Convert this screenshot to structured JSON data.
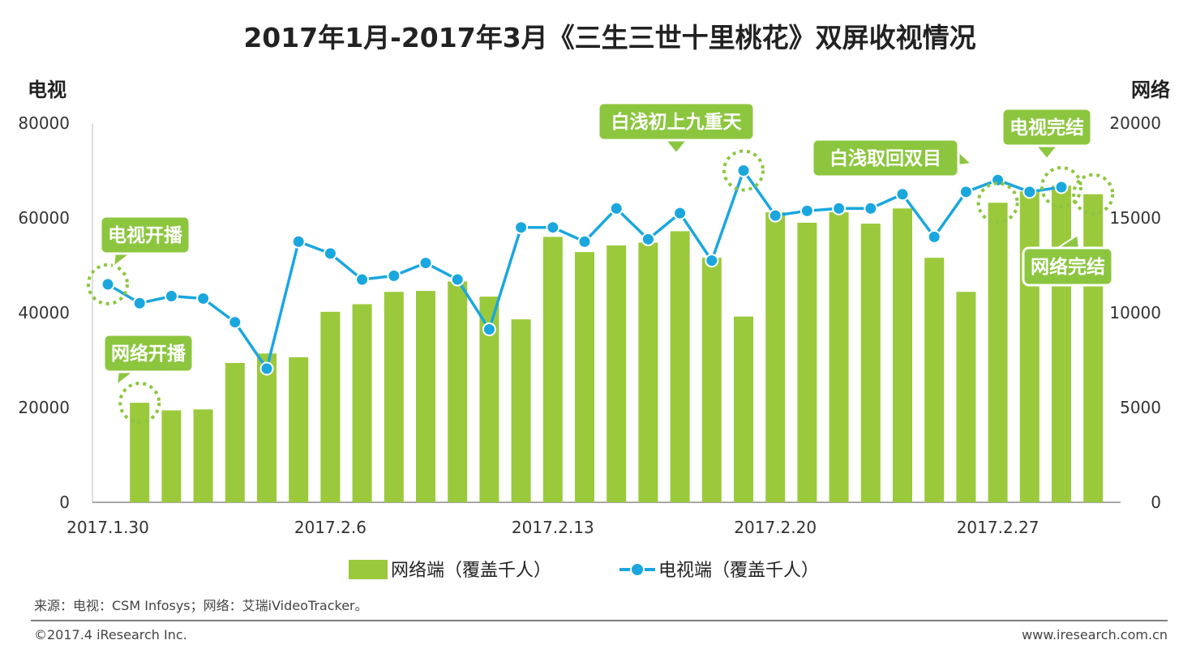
{
  "chart_data": {
    "type": "bar+line",
    "title": "2017年1月-2017年3月《三生三世十里桃花》双屏收视情况",
    "left_axis_title": "电视",
    "right_axis_title": "网络",
    "left_ylim": [
      0,
      80000
    ],
    "left_ticks": [
      "0",
      "20000",
      "40000",
      "60000",
      "80000"
    ],
    "right_ylim": [
      0,
      20000
    ],
    "right_ticks": [
      "0",
      "5000",
      "10000",
      "15000",
      "20000"
    ],
    "x_labels": [
      "2017.1.30",
      "2017.2.6",
      "2017.2.13",
      "2017.2.20",
      "2017.2.27"
    ],
    "x_label_index": [
      0,
      7,
      14,
      21,
      28
    ],
    "days": 32,
    "series": [
      {
        "name": "网络端（覆盖千人）",
        "type": "bar",
        "axis": "right",
        "color": "#9bc93c",
        "values": [
          null,
          5250,
          4850,
          4900,
          7350,
          7850,
          7650,
          10050,
          10450,
          11100,
          11150,
          11650,
          10850,
          9650,
          14000,
          13200,
          13550,
          13700,
          14300,
          12900,
          9800,
          15300,
          14750,
          15300,
          14700,
          15500,
          12900,
          11100,
          15800,
          16400,
          16700,
          16250
        ]
      },
      {
        "name": "电视端（覆盖千人）",
        "type": "line",
        "axis": "left",
        "color": "#1aa7dd",
        "values": [
          46000,
          42000,
          43500,
          43000,
          38000,
          28200,
          55000,
          52500,
          47000,
          47800,
          50500,
          47000,
          36500,
          58000,
          58000,
          55000,
          62000,
          55500,
          61000,
          51000,
          70000,
          60500,
          61500,
          62000,
          62000,
          65000,
          56000,
          65500,
          68000,
          65500,
          66500,
          null
        ]
      }
    ],
    "callouts": [
      {
        "text": "电视开播"
      },
      {
        "text": "网络开播"
      },
      {
        "text": "白浅初上九重天"
      },
      {
        "text": "白浅取回双目"
      },
      {
        "text": "电视完结"
      },
      {
        "text": "网络完结"
      }
    ],
    "legend": {
      "placement": "bottom"
    }
  },
  "footer": {
    "source": "来源：电视：CSM Infosys；网络：艾瑞iVideoTracker。",
    "copyright": "©2017.4 iResearch Inc.",
    "website": "www.iresearch.com.cn"
  }
}
